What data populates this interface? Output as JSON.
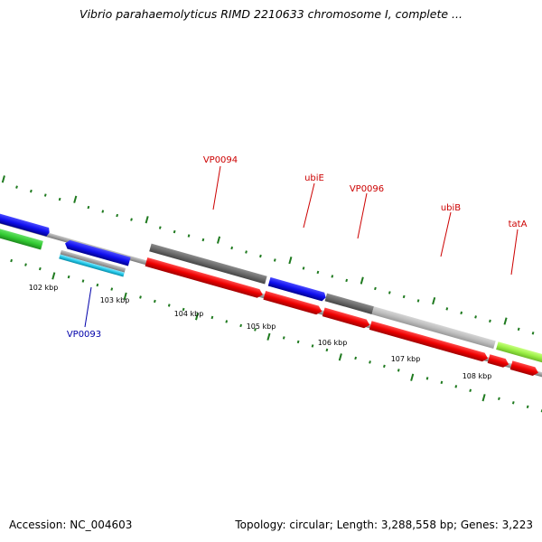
{
  "title": "Vibrio parahaemolyticus RIMD 2210633 chromosome I, complete ...",
  "footer": {
    "accession": "Accession: NC_004603",
    "summary": "Topology: circular; Length: 3,288,558 bp; Genes: 3,223"
  },
  "colors": {
    "backbone": "#8a8a8a",
    "tick": "#1f7a1f",
    "label_red": "#cc0000",
    "label_blue": "#0000aa"
  },
  "ticks": [
    {
      "label": "102 kbp"
    },
    {
      "label": "103 kbp"
    },
    {
      "label": "104 kbp"
    },
    {
      "label": "105 kbp"
    },
    {
      "label": "106 kbp"
    },
    {
      "label": "107 kbp"
    },
    {
      "label": "108 kbp"
    }
  ],
  "gene_labels": [
    {
      "text": "VP0094",
      "color": "#cc0000"
    },
    {
      "text": "ubiE",
      "color": "#cc0000"
    },
    {
      "text": "VP0096",
      "color": "#cc0000"
    },
    {
      "text": "ubiB",
      "color": "#cc0000"
    },
    {
      "text": "tatA",
      "color": "#cc0000"
    },
    {
      "text": "VP0093",
      "color": "#0000aa"
    }
  ]
}
